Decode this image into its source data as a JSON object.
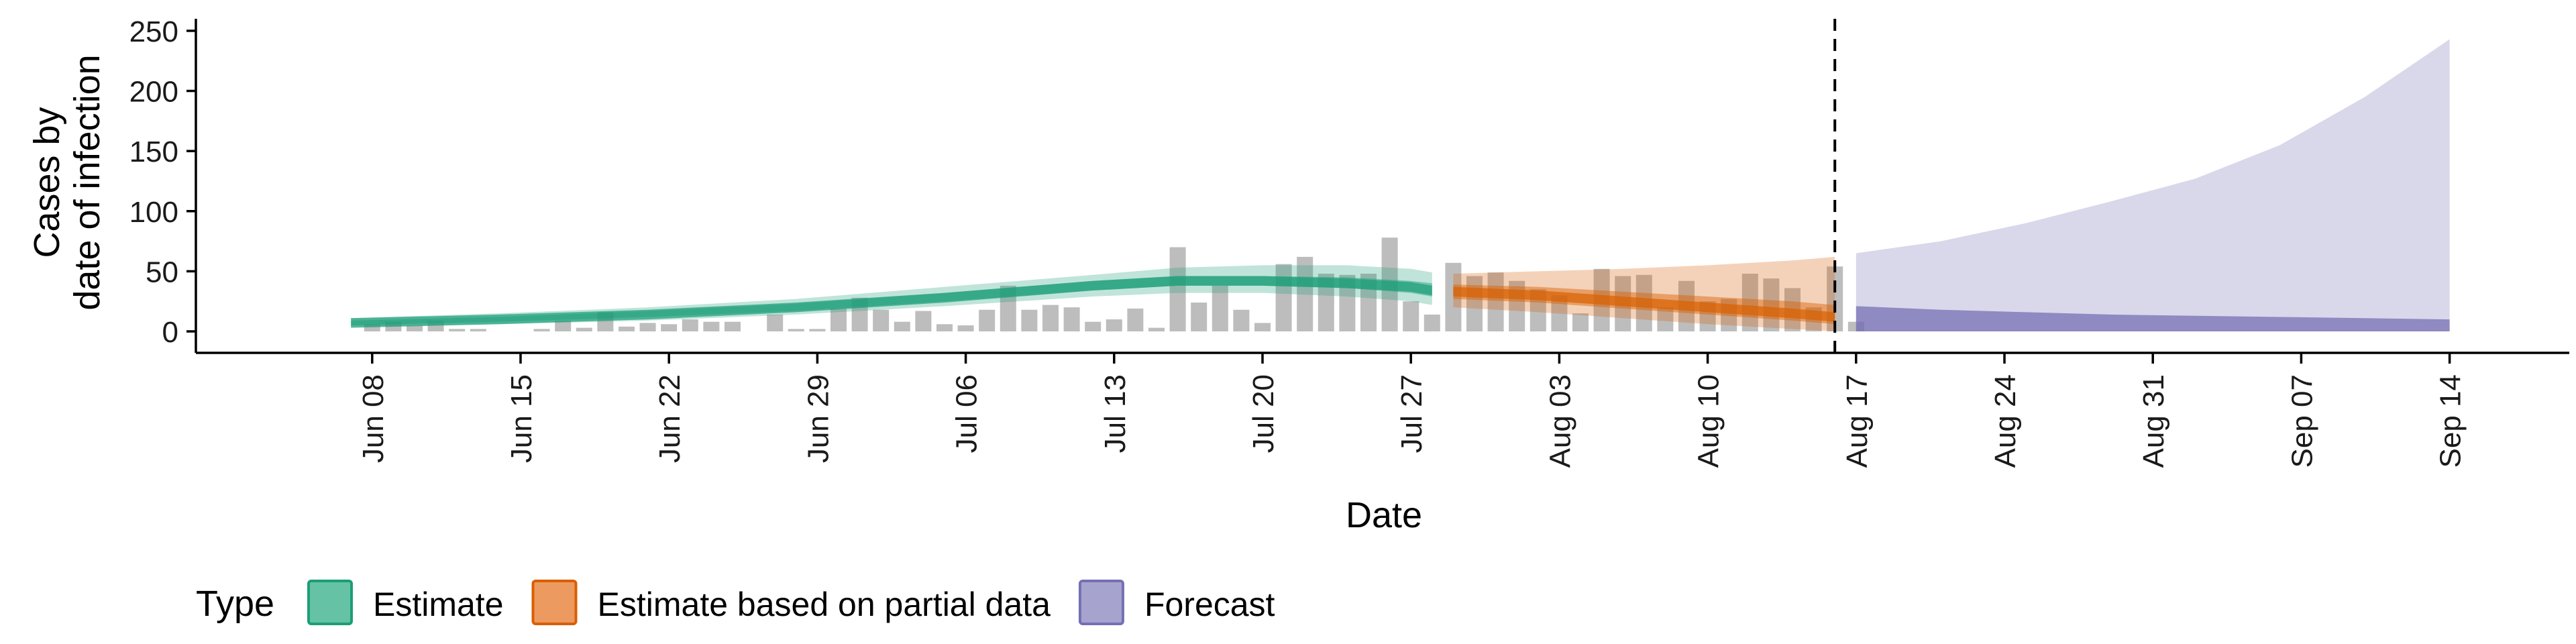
{
  "chart_data": {
    "type": "bar+area",
    "xlabel": "Date",
    "ylabel_line1": "Cases by",
    "ylabel_line2": "date of infection",
    "ylim": [
      0,
      260
    ],
    "yticks": [
      0,
      50,
      100,
      150,
      200,
      250
    ],
    "x_start_day": 0,
    "x_end_day": 104,
    "date_origin": "May 31",
    "vline_day": 77,
    "xticks": [
      {
        "label": "Jun 08",
        "day": 8
      },
      {
        "label": "Jun 15",
        "day": 15
      },
      {
        "label": "Jun 22",
        "day": 22
      },
      {
        "label": "Jun 29",
        "day": 29
      },
      {
        "label": "Jul 06",
        "day": 36
      },
      {
        "label": "Jul 13",
        "day": 43
      },
      {
        "label": "Jul 20",
        "day": 50
      },
      {
        "label": "Jul 27",
        "day": 57
      },
      {
        "label": "Aug 03",
        "day": 64
      },
      {
        "label": "Aug 10",
        "day": 71
      },
      {
        "label": "Aug 17",
        "day": 78
      },
      {
        "label": "Aug 24",
        "day": 85
      },
      {
        "label": "Aug 31",
        "day": 92
      },
      {
        "label": "Sep 07",
        "day": 99
      },
      {
        "label": "Sep 14",
        "day": 106
      }
    ],
    "bars_start_day": 8,
    "bars": [
      6,
      8,
      5,
      9,
      2,
      2,
      0,
      0,
      2,
      9,
      3,
      16,
      4,
      7,
      6,
      10,
      8,
      8,
      0,
      14,
      2,
      2,
      19,
      28,
      18,
      8,
      17,
      6,
      5,
      18,
      38,
      18,
      22,
      20,
      8,
      10,
      19,
      3,
      70,
      24,
      38,
      18,
      7,
      56,
      62,
      48,
      47,
      48,
      78,
      25,
      14,
      57,
      46,
      49,
      42,
      35,
      30,
      15,
      52,
      46,
      47,
      20,
      42,
      25,
      27,
      48,
      44,
      36,
      20,
      54,
      8
    ],
    "series": [
      {
        "name": "Estimate",
        "color": "#1b9e77",
        "days": [
          7,
          14,
          21,
          28,
          35,
          42,
          46,
          50,
          54,
          57,
          58
        ],
        "mid": [
          7,
          10,
          14,
          20,
          28,
          38,
          42,
          42,
          40,
          37,
          34
        ],
        "lo50": [
          5,
          8,
          12,
          17,
          25,
          34,
          38,
          38,
          36,
          32,
          29
        ],
        "hi50": [
          9,
          12,
          17,
          23,
          32,
          42,
          46,
          46,
          45,
          42,
          40
        ],
        "lo90": [
          4,
          6,
          9,
          14,
          21,
          29,
          32,
          32,
          29,
          25,
          22
        ],
        "hi90": [
          11,
          15,
          20,
          27,
          37,
          47,
          53,
          55,
          55,
          52,
          49
        ]
      },
      {
        "name": "Estimate based on partial data",
        "color": "#d95f02",
        "days": [
          59,
          63,
          67,
          71,
          75,
          77
        ],
        "mid": [
          33,
          30,
          25,
          20,
          15,
          12
        ],
        "lo50": [
          27,
          24,
          19,
          14,
          9,
          6
        ],
        "hi50": [
          39,
          37,
          33,
          29,
          25,
          22
        ],
        "lo90": [
          20,
          16,
          11,
          6,
          2,
          0
        ],
        "hi90": [
          48,
          50,
          52,
          55,
          59,
          62
        ]
      },
      {
        "name": "Forecast",
        "color": "#7570b3",
        "days": [
          78,
          82,
          86,
          90,
          94,
          98,
          102,
          106
        ],
        "lo90": [
          0,
          0,
          0,
          0,
          0,
          0,
          0,
          0
        ],
        "mid": [
          21,
          18,
          16,
          14,
          13,
          12,
          11,
          10
        ],
        "hi90": [
          65,
          75,
          90,
          108,
          127,
          155,
          195,
          243
        ]
      }
    ],
    "legend": {
      "title": "Type",
      "items": [
        {
          "label": "Estimate",
          "fill": "#66c2a5",
          "border": "#1b9e77"
        },
        {
          "label": "Estimate based on partial data",
          "fill": "#ec9a5f",
          "border": "#d95f02"
        },
        {
          "label": "Forecast",
          "fill": "#a7a3cf",
          "border": "#7570b3"
        }
      ]
    }
  }
}
